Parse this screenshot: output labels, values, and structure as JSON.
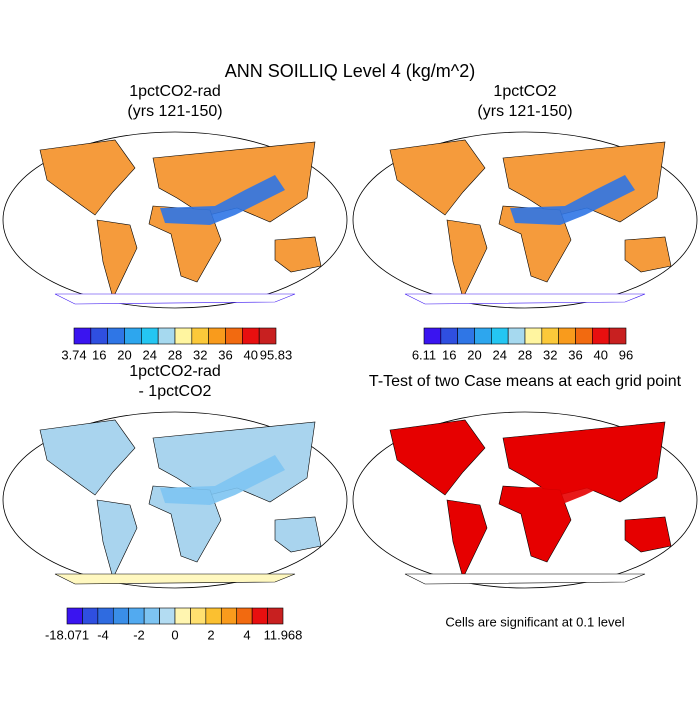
{
  "title": "ANN SOILLIQ Level 4 (kg/m^2)",
  "panels": [
    {
      "title": [
        "1pctCO2-rad",
        "(yrs 121-150)"
      ],
      "colorbar": {
        "colors": [
          "#3a14f0",
          "#2f4fe0",
          "#2f76e6",
          "#2da6ee",
          "#24c6f2",
          "#a6d9ef",
          "#fff5a0",
          "#fbc93a",
          "#f99b1c",
          "#f26a10",
          "#e80f0f",
          "#c82020"
        ],
        "labels": [
          3.74,
          16,
          20,
          24,
          28,
          32,
          36,
          40,
          95.83
        ]
      }
    },
    {
      "title": [
        "1pctCO2",
        "(yrs 121-150)"
      ],
      "colorbar": {
        "colors": [
          "#3a14f0",
          "#2f4fe0",
          "#2f76e6",
          "#2da6ee",
          "#24c6f2",
          "#a6d9ef",
          "#fff5a0",
          "#fbc93a",
          "#f99b1c",
          "#f26a10",
          "#e80f0f",
          "#c82020"
        ],
        "labels": [
          6.11,
          16,
          20,
          24,
          28,
          32,
          36,
          40,
          96
        ]
      }
    },
    {
      "title": [
        "1pctCO2-rad",
        "- 1pctCO2"
      ],
      "colorbar": {
        "colors": [
          "#3a14f0",
          "#2f4fe0",
          "#2f6be0",
          "#3a8ee8",
          "#52aaf0",
          "#7dc4f2",
          "#b3dcf2",
          "#fff5b0",
          "#ffe070",
          "#fbc030",
          "#f99b1c",
          "#f26a10",
          "#e80f0f",
          "#c82020"
        ],
        "labels": [
          -18.071,
          -4,
          -2,
          0,
          2,
          4,
          11.968
        ]
      }
    },
    {
      "title": [
        "T-Test of two Case means at each grid point"
      ],
      "note": "Cells are significant at 0.1 level"
    }
  ]
}
